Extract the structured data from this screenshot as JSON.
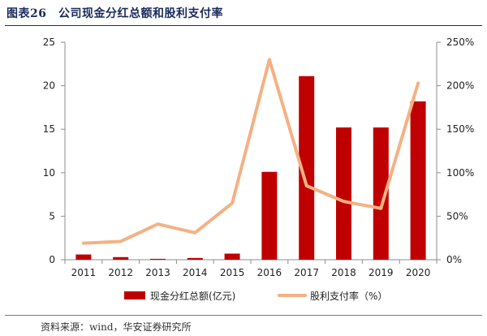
{
  "figure": {
    "title": "图表26　公司现金分红总额和股利支付率",
    "source": "资料来源：wind，华安证券研究所"
  },
  "chart_data": {
    "type": "bar+line",
    "categories": [
      "2011",
      "2012",
      "2013",
      "2014",
      "2015",
      "2016",
      "2017",
      "2018",
      "2019",
      "2020"
    ],
    "series": [
      {
        "name": "现金分红总额(亿元)",
        "type": "bar",
        "axis": "left",
        "color": "#c00000",
        "values": [
          0.6,
          0.3,
          0.1,
          0.2,
          0.7,
          10.1,
          21.1,
          15.2,
          15.2,
          18.2
        ]
      },
      {
        "name": "股利支付率（%）",
        "type": "line",
        "axis": "right",
        "color": "#f4b183",
        "values": [
          19,
          21,
          41,
          31,
          65,
          230,
          85,
          67,
          59,
          203
        ]
      }
    ],
    "y_left": {
      "min": 0,
      "max": 25,
      "ticks": [
        "0",
        "5",
        "10",
        "15",
        "20",
        "25"
      ]
    },
    "y_right": {
      "min": 0,
      "max": 250,
      "ticks": [
        "0%",
        "50%",
        "100%",
        "150%",
        "200%",
        "250%"
      ]
    },
    "legend_position": "bottom",
    "grid": false
  }
}
